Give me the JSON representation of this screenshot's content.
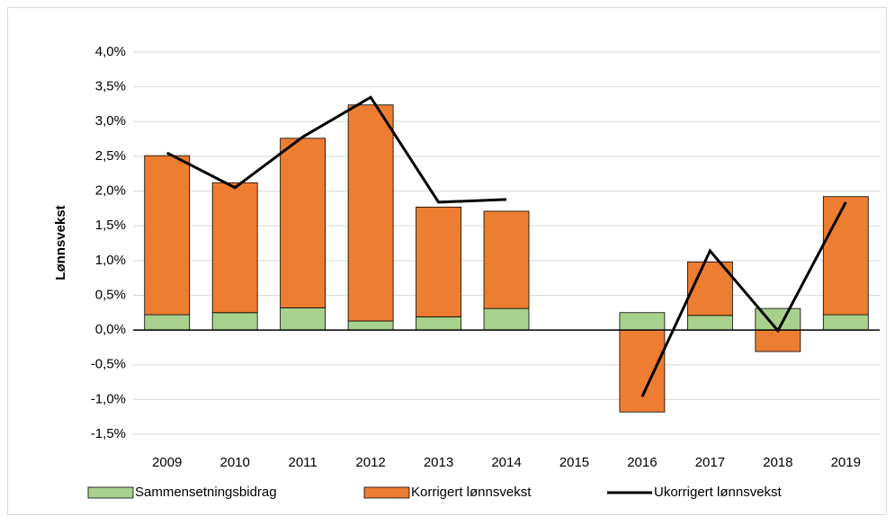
{
  "chart_data": {
    "type": "stacked-bar-line",
    "y_label": "Lønnsvekst",
    "categories": [
      "2009",
      "2010",
      "2011",
      "2012",
      "2013",
      "2014",
      "2015",
      "2016",
      "2017",
      "2018",
      "2019"
    ],
    "series": [
      {
        "name": "Sammensetningsbidrag",
        "type": "bar",
        "color": "#a9d18e",
        "values": [
          0.22,
          0.25,
          0.32,
          0.13,
          0.19,
          0.31,
          null,
          0.25,
          0.21,
          0.31,
          0.22
        ]
      },
      {
        "name": "Korrigert lønnsvekst",
        "type": "bar",
        "color": "#ed7d31",
        "values": [
          2.29,
          1.87,
          2.44,
          3.11,
          1.58,
          1.4,
          null,
          -1.18,
          0.77,
          -0.31,
          1.7
        ]
      },
      {
        "name": "Ukorrigert lønnsvekst",
        "type": "line",
        "color": "#000000",
        "values": [
          2.55,
          2.05,
          2.78,
          3.35,
          1.84,
          1.88,
          null,
          -0.96,
          1.14,
          -0.01,
          1.84
        ]
      }
    ],
    "ylim": [
      -1.5,
      4.0
    ],
    "yticks": [
      {
        "value": -1.5,
        "label": "-1,5%"
      },
      {
        "value": -1.0,
        "label": "-1,0%"
      },
      {
        "value": -0.5,
        "label": "-0,5%"
      },
      {
        "value": 0,
        "label": "0,0%"
      },
      {
        "value": 0.5,
        "label": "0,5%"
      },
      {
        "value": 1.0,
        "label": "1,0%"
      },
      {
        "value": 1.5,
        "label": "1,5%"
      },
      {
        "value": 2.0,
        "label": "2,0%"
      },
      {
        "value": 2.5,
        "label": "2,5%"
      },
      {
        "value": 3.0,
        "label": "3,0%"
      },
      {
        "value": 3.5,
        "label": "3,5%"
      },
      {
        "value": 4.0,
        "label": "4,0%"
      }
    ],
    "grid": true,
    "legend": "bottom"
  }
}
